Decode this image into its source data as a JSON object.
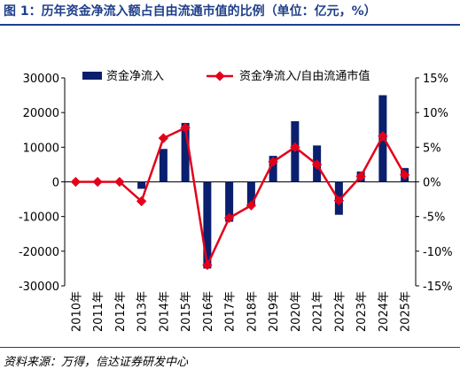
{
  "figure": {
    "title": "图 1：历年资金净流入额占自由流通市值的比例（单位：亿元，%）",
    "source": "资料来源：万得，信达证券研发中心"
  },
  "chart_data": {
    "type": "bar+line",
    "categories": [
      "2010年",
      "2011年",
      "2012年",
      "2013年",
      "2014年",
      "2015年",
      "2016年",
      "2017年",
      "2018年",
      "2019年",
      "2020年",
      "2021年",
      "2022年",
      "2023年",
      "2024年",
      "2025年"
    ],
    "series": [
      {
        "name": "资金净流入",
        "type": "bar",
        "axis": "left",
        "color": "#0a1f6e",
        "values": [
          0,
          0,
          0,
          -2000,
          9500,
          17000,
          -25000,
          -11500,
          -6500,
          7500,
          17500,
          10500,
          -9500,
          3000,
          25000,
          4000
        ]
      },
      {
        "name": "资金净流入/自由流通市值",
        "type": "line",
        "axis": "right",
        "color": "#e3001b",
        "values": [
          0.0,
          0.0,
          0.0,
          -2.8,
          6.3,
          7.8,
          -12.0,
          -5.2,
          -3.4,
          2.9,
          5.0,
          2.5,
          -2.7,
          0.8,
          6.6,
          1.0
        ]
      }
    ],
    "y_left": {
      "ylim": [
        -30000,
        30000
      ],
      "ticks": [
        30000,
        20000,
        10000,
        0,
        -10000,
        -20000,
        -30000
      ]
    },
    "y_right": {
      "ylim": [
        -15,
        15
      ],
      "ticks": [
        15,
        10,
        5,
        0,
        -5,
        -10,
        -15
      ],
      "unit": "%"
    },
    "legend_position": "top",
    "grid": false
  }
}
